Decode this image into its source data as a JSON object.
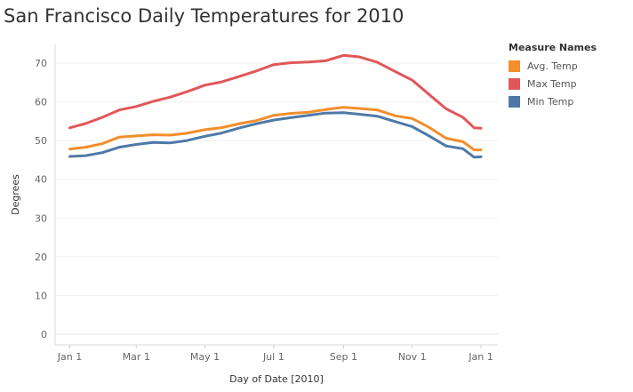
{
  "chart_data": {
    "type": "line",
    "title": "San Francisco Daily Temperatures for 2010",
    "xlabel": "Day of Date [2010]",
    "ylabel": "Degrees",
    "ylim": [
      0,
      73
    ],
    "yticks": [
      0,
      10,
      20,
      30,
      40,
      50,
      60,
      70
    ],
    "xticks": [
      {
        "label": "Jan 1",
        "day": 1
      },
      {
        "label": "Mar 1",
        "day": 60
      },
      {
        "label": "May 1",
        "day": 121
      },
      {
        "label": "Jul 1",
        "day": 182
      },
      {
        "label": "Sep 1",
        "day": 244
      },
      {
        "label": "Nov 1",
        "day": 305
      },
      {
        "label": "Jan 1",
        "day": 366
      }
    ],
    "xlim": [
      -12,
      381
    ],
    "grid": "horizontal",
    "legend": {
      "title": "Measure Names",
      "placement": "right"
    },
    "series": [
      {
        "name": "Avg. Temp",
        "color": "#F28E2B",
        "points": [
          [
            1,
            47.8
          ],
          [
            15,
            48.3
          ],
          [
            30,
            49.2
          ],
          [
            45,
            50.9
          ],
          [
            60,
            51.2
          ],
          [
            75,
            51.5
          ],
          [
            90,
            51.4
          ],
          [
            105,
            51.9
          ],
          [
            121,
            52.8
          ],
          [
            135,
            53.3
          ],
          [
            152,
            54.4
          ],
          [
            166,
            55.1
          ],
          [
            182,
            56.5
          ],
          [
            197,
            57.0
          ],
          [
            213,
            57.3
          ],
          [
            228,
            58.0
          ],
          [
            244,
            58.6
          ],
          [
            258,
            58.3
          ],
          [
            274,
            57.9
          ],
          [
            290,
            56.4
          ],
          [
            305,
            55.7
          ],
          [
            320,
            53.4
          ],
          [
            335,
            50.6
          ],
          [
            350,
            49.7
          ],
          [
            360,
            47.6
          ],
          [
            366,
            47.6
          ]
        ]
      },
      {
        "name": "Max Temp",
        "color": "#E15759",
        "points": [
          [
            1,
            53.3
          ],
          [
            15,
            54.4
          ],
          [
            30,
            56.0
          ],
          [
            45,
            57.9
          ],
          [
            60,
            58.8
          ],
          [
            75,
            60.1
          ],
          [
            90,
            61.2
          ],
          [
            105,
            62.6
          ],
          [
            121,
            64.3
          ],
          [
            135,
            65.1
          ],
          [
            152,
            66.6
          ],
          [
            166,
            67.9
          ],
          [
            182,
            69.6
          ],
          [
            197,
            70.1
          ],
          [
            213,
            70.3
          ],
          [
            228,
            70.6
          ],
          [
            244,
            72.0
          ],
          [
            258,
            71.6
          ],
          [
            274,
            70.2
          ],
          [
            290,
            67.8
          ],
          [
            305,
            65.6
          ],
          [
            320,
            61.9
          ],
          [
            335,
            58.2
          ],
          [
            350,
            56.0
          ],
          [
            360,
            53.3
          ],
          [
            366,
            53.2
          ]
        ]
      },
      {
        "name": "Min Temp",
        "color": "#4E79A7",
        "points": [
          [
            1,
            45.9
          ],
          [
            15,
            46.1
          ],
          [
            30,
            46.9
          ],
          [
            45,
            48.3
          ],
          [
            60,
            49.0
          ],
          [
            75,
            49.5
          ],
          [
            90,
            49.4
          ],
          [
            105,
            50.0
          ],
          [
            121,
            51.1
          ],
          [
            135,
            51.9
          ],
          [
            152,
            53.3
          ],
          [
            166,
            54.3
          ],
          [
            182,
            55.3
          ],
          [
            197,
            55.9
          ],
          [
            213,
            56.5
          ],
          [
            228,
            57.1
          ],
          [
            244,
            57.2
          ],
          [
            258,
            56.8
          ],
          [
            274,
            56.3
          ],
          [
            290,
            54.9
          ],
          [
            305,
            53.6
          ],
          [
            320,
            51.2
          ],
          [
            335,
            48.6
          ],
          [
            350,
            47.9
          ],
          [
            360,
            45.7
          ],
          [
            366,
            45.8
          ]
        ]
      }
    ]
  }
}
